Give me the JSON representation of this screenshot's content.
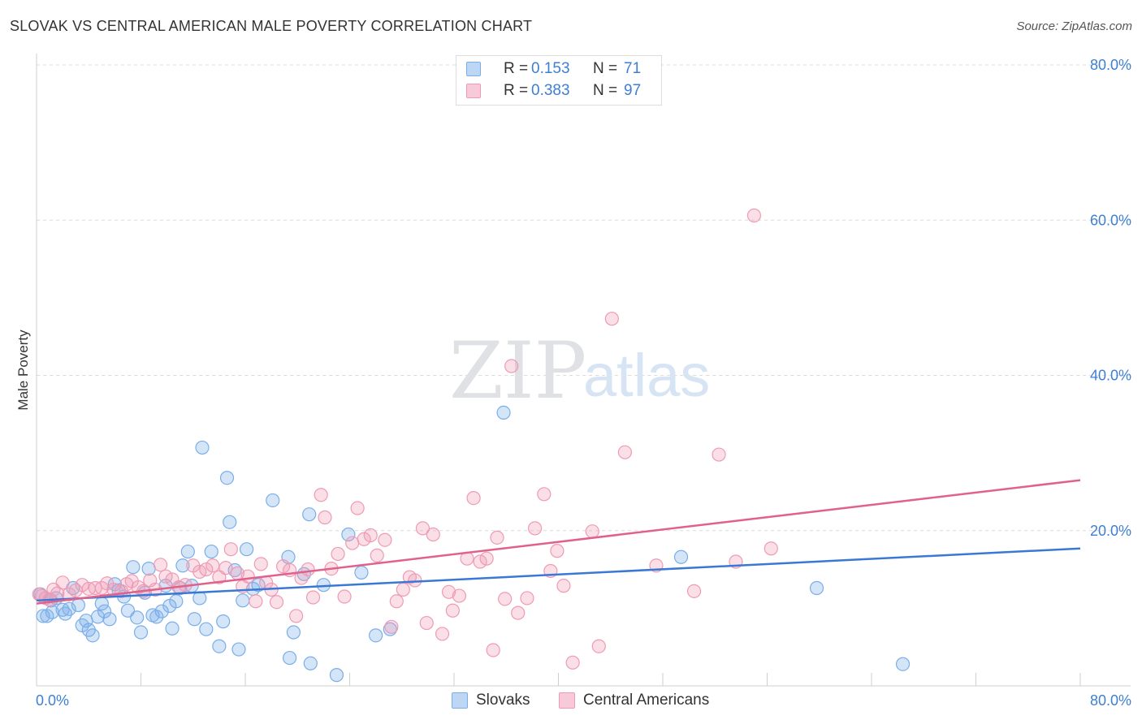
{
  "title": "SLOVAK VS CENTRAL AMERICAN MALE POVERTY CORRELATION CHART",
  "source": "Source: ZipAtlas.com",
  "watermark": {
    "zip": "ZIP",
    "atlas": "atlas"
  },
  "legend_top": [
    {
      "r_label": "R =",
      "r_value": "0.153",
      "n_label": "N =",
      "n_value": "71",
      "color": "#7aaee8",
      "fill": "#bcd6f4"
    },
    {
      "r_label": "R =",
      "r_value": "0.383",
      "n_label": "N =",
      "n_value": "97",
      "color": "#ef9ab5",
      "fill": "#f8c9d8"
    }
  ],
  "legend_bottom": [
    {
      "label": "Slovaks",
      "color": "#7aaee8",
      "fill": "#bcd6f4"
    },
    {
      "label": "Central Americans",
      "color": "#ef9ab5",
      "fill": "#f8c9d8"
    }
  ],
  "chart_data": {
    "type": "scatter",
    "title": "SLOVAK VS CENTRAL AMERICAN MALE POVERTY CORRELATION CHART",
    "xlabel": "",
    "ylabel": "Male Poverty",
    "xlim": [
      0,
      80
    ],
    "ylim": [
      0,
      80
    ],
    "x_tick_labels": [
      "0.0%",
      "80.0%"
    ],
    "y_tick_labels": [
      "20.0%",
      "40.0%",
      "60.0%",
      "80.0%"
    ],
    "y_ticks": [
      20,
      40,
      60,
      80
    ],
    "grid": true,
    "legend_position": "top-center",
    "series": [
      {
        "name": "Slovaks",
        "color": "#3a78d6",
        "point_color": "#7aaee8",
        "trend": {
          "x": [
            0,
            80
          ],
          "y": [
            11.0,
            17.7
          ]
        },
        "points": [
          [
            0.3,
            11.8
          ],
          [
            0.5,
            9.0
          ],
          [
            0.8,
            9.0
          ],
          [
            1.1,
            11.0
          ],
          [
            1.5,
            11.3
          ],
          [
            2.0,
            9.8
          ],
          [
            2.2,
            9.3
          ],
          [
            2.5,
            9.9
          ],
          [
            2.8,
            12.6
          ],
          [
            3.2,
            10.4
          ],
          [
            3.5,
            7.8
          ],
          [
            3.8,
            8.4
          ],
          [
            4.0,
            7.2
          ],
          [
            4.3,
            6.5
          ],
          [
            4.7,
            8.9
          ],
          [
            5.0,
            10.6
          ],
          [
            5.2,
            9.6
          ],
          [
            5.6,
            8.6
          ],
          [
            6.0,
            13.1
          ],
          [
            6.3,
            12.3
          ],
          [
            6.7,
            11.5
          ],
          [
            7.0,
            9.7
          ],
          [
            7.4,
            15.3
          ],
          [
            7.7,
            8.8
          ],
          [
            8.0,
            6.9
          ],
          [
            8.3,
            12.0
          ],
          [
            8.6,
            15.1
          ],
          [
            8.9,
            9.1
          ],
          [
            9.2,
            8.9
          ],
          [
            9.6,
            9.6
          ],
          [
            9.9,
            12.9
          ],
          [
            10.2,
            10.3
          ],
          [
            10.4,
            7.4
          ],
          [
            10.7,
            10.9
          ],
          [
            11.0,
            12.6
          ],
          [
            11.2,
            15.5
          ],
          [
            11.6,
            17.3
          ],
          [
            11.9,
            12.9
          ],
          [
            12.1,
            8.6
          ],
          [
            12.5,
            11.3
          ],
          [
            12.7,
            30.7
          ],
          [
            13.0,
            7.3
          ],
          [
            13.4,
            17.3
          ],
          [
            14.0,
            5.1
          ],
          [
            14.3,
            8.3
          ],
          [
            14.6,
            26.8
          ],
          [
            14.8,
            21.1
          ],
          [
            15.2,
            14.9
          ],
          [
            15.5,
            4.7
          ],
          [
            15.8,
            11.0
          ],
          [
            16.1,
            17.6
          ],
          [
            16.6,
            12.5
          ],
          [
            17.0,
            13.0
          ],
          [
            18.1,
            23.9
          ],
          [
            19.3,
            16.6
          ],
          [
            19.4,
            3.6
          ],
          [
            19.7,
            6.9
          ],
          [
            20.5,
            14.4
          ],
          [
            20.9,
            22.1
          ],
          [
            21.0,
            2.9
          ],
          [
            22.0,
            13.0
          ],
          [
            23.0,
            1.4
          ],
          [
            23.9,
            19.5
          ],
          [
            24.9,
            14.6
          ],
          [
            26.0,
            6.5
          ],
          [
            27.1,
            7.3
          ],
          [
            35.8,
            35.2
          ],
          [
            49.4,
            16.6
          ],
          [
            59.8,
            12.6
          ],
          [
            66.4,
            2.8
          ],
          [
            1.2,
            9.5
          ]
        ]
      },
      {
        "name": "Central Americans",
        "color": "#e0628c",
        "point_color": "#ef9ab5",
        "trend": {
          "x": [
            0,
            80
          ],
          "y": [
            10.6,
            26.5
          ]
        },
        "points": [
          [
            0.2,
            11.8
          ],
          [
            0.4,
            11.6
          ],
          [
            0.7,
            11.3
          ],
          [
            1.0,
            11.1
          ],
          [
            1.3,
            12.4
          ],
          [
            1.6,
            11.9
          ],
          [
            2.0,
            13.3
          ],
          [
            2.5,
            11.8
          ],
          [
            3.0,
            12.3
          ],
          [
            3.5,
            13.0
          ],
          [
            4.0,
            12.5
          ],
          [
            4.5,
            12.6
          ],
          [
            5.0,
            12.6
          ],
          [
            5.4,
            13.2
          ],
          [
            5.9,
            12.4
          ],
          [
            6.5,
            12.2
          ],
          [
            6.9,
            13.1
          ],
          [
            7.3,
            13.5
          ],
          [
            7.8,
            12.7
          ],
          [
            8.2,
            12.2
          ],
          [
            8.7,
            13.6
          ],
          [
            9.1,
            12.4
          ],
          [
            9.5,
            15.6
          ],
          [
            9.9,
            14.1
          ],
          [
            10.4,
            13.7
          ],
          [
            10.9,
            12.7
          ],
          [
            11.4,
            13.0
          ],
          [
            12.0,
            15.5
          ],
          [
            12.5,
            14.7
          ],
          [
            13.0,
            15.0
          ],
          [
            13.5,
            15.5
          ],
          [
            14.0,
            14.0
          ],
          [
            14.5,
            15.2
          ],
          [
            14.9,
            17.6
          ],
          [
            15.4,
            14.5
          ],
          [
            15.8,
            12.8
          ],
          [
            16.2,
            14.1
          ],
          [
            16.8,
            10.9
          ],
          [
            17.2,
            15.7
          ],
          [
            17.6,
            13.3
          ],
          [
            18.0,
            12.4
          ],
          [
            18.4,
            10.8
          ],
          [
            18.9,
            15.4
          ],
          [
            19.4,
            14.9
          ],
          [
            19.9,
            9.0
          ],
          [
            20.3,
            13.9
          ],
          [
            20.8,
            15.0
          ],
          [
            21.2,
            11.4
          ],
          [
            21.8,
            24.6
          ],
          [
            22.1,
            21.7
          ],
          [
            22.6,
            15.1
          ],
          [
            23.1,
            17.0
          ],
          [
            23.6,
            11.5
          ],
          [
            24.2,
            18.4
          ],
          [
            24.6,
            22.9
          ],
          [
            25.1,
            18.9
          ],
          [
            25.6,
            19.4
          ],
          [
            26.1,
            16.8
          ],
          [
            26.7,
            18.8
          ],
          [
            27.2,
            7.6
          ],
          [
            27.6,
            10.9
          ],
          [
            28.1,
            12.4
          ],
          [
            28.6,
            14.0
          ],
          [
            29.0,
            13.6
          ],
          [
            29.6,
            20.3
          ],
          [
            29.9,
            8.1
          ],
          [
            30.4,
            19.5
          ],
          [
            31.1,
            6.7
          ],
          [
            31.6,
            12.1
          ],
          [
            31.9,
            9.7
          ],
          [
            32.4,
            11.6
          ],
          [
            33.0,
            16.4
          ],
          [
            33.5,
            24.2
          ],
          [
            34.0,
            16.0
          ],
          [
            34.5,
            16.4
          ],
          [
            35.0,
            4.6
          ],
          [
            35.3,
            19.1
          ],
          [
            35.9,
            11.2
          ],
          [
            36.4,
            41.2
          ],
          [
            36.9,
            9.4
          ],
          [
            37.6,
            11.3
          ],
          [
            38.2,
            20.3
          ],
          [
            38.9,
            24.7
          ],
          [
            39.4,
            14.8
          ],
          [
            39.9,
            17.4
          ],
          [
            40.4,
            12.9
          ],
          [
            41.1,
            3.0
          ],
          [
            42.6,
            19.9
          ],
          [
            43.1,
            5.1
          ],
          [
            44.1,
            47.3
          ],
          [
            45.1,
            30.1
          ],
          [
            47.5,
            15.5
          ],
          [
            50.4,
            12.2
          ],
          [
            52.3,
            29.8
          ],
          [
            53.6,
            16.0
          ],
          [
            55.0,
            60.6
          ],
          [
            56.3,
            17.7
          ]
        ]
      }
    ]
  }
}
